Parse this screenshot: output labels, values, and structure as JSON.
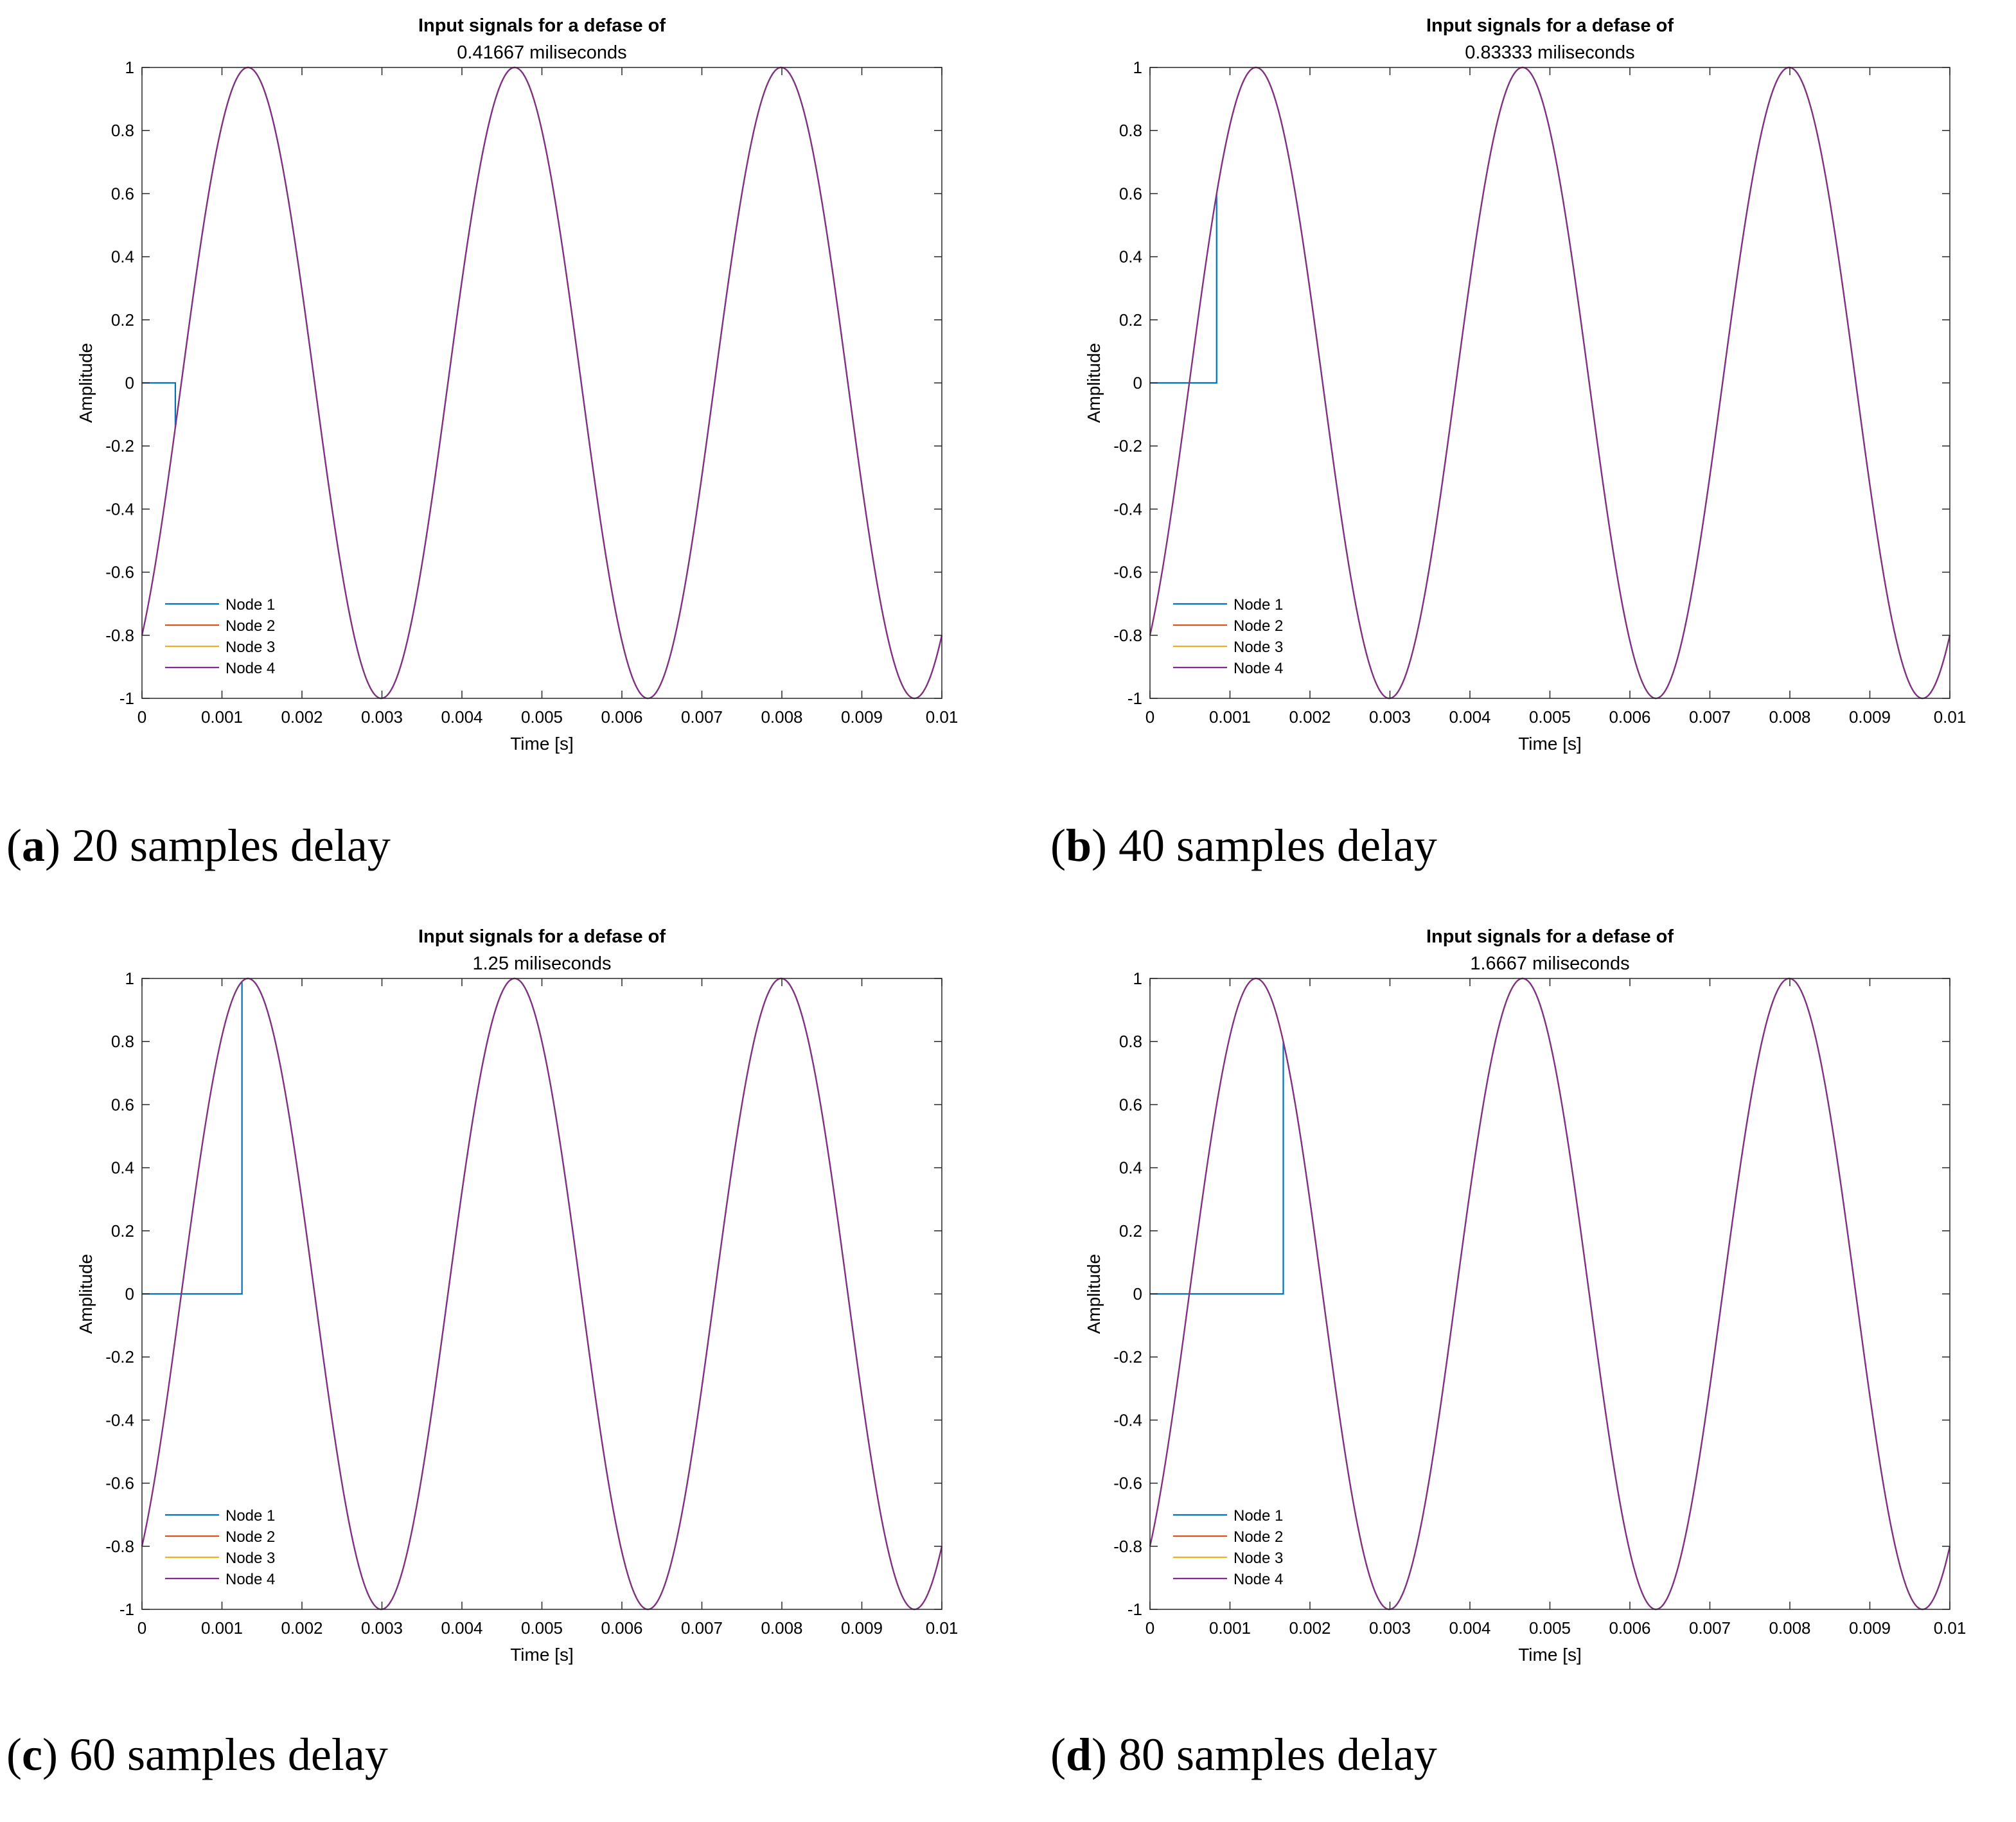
{
  "colors": {
    "node1": "#0072BD",
    "node2": "#D95319",
    "node3": "#EDB120",
    "node4": "#7E2F8E"
  },
  "panels": [
    {
      "caption_letter": "a",
      "caption_text": "20 samples delay",
      "chart_data": {
        "type": "line",
        "title": "Input signals for a defase of",
        "subtitle": "0.41667 miliseconds",
        "xlabel": "Time [s]",
        "ylabel": "Amplitude",
        "xlim": [
          0,
          0.01
        ],
        "ylim": [
          -1,
          1
        ],
        "xticks": [
          "0",
          "0.001",
          "0.002",
          "0.003",
          "0.004",
          "0.005",
          "0.006",
          "0.007",
          "0.008",
          "0.009",
          "0.01"
        ],
        "yticks": [
          "-1",
          "-0.8",
          "-0.6",
          "-0.4",
          "-0.2",
          "0",
          "0.2",
          "0.4",
          "0.6",
          "0.8",
          "1"
        ],
        "legend_location": "bottom-left",
        "frequency_hz": 300,
        "phase_rad": -0.9273,
        "delay_s": 0.00041667,
        "series": [
          {
            "name": "Node 1",
            "color_key": "node1",
            "delay_s": 0.00041667
          },
          {
            "name": "Node 2",
            "color_key": "node2",
            "delay_s": 0
          },
          {
            "name": "Node 3",
            "color_key": "node3",
            "delay_s": 0
          },
          {
            "name": "Node 4",
            "color_key": "node4",
            "delay_s": 0
          }
        ]
      }
    },
    {
      "caption_letter": "b",
      "caption_text": "40 samples delay",
      "chart_data": {
        "type": "line",
        "title": "Input signals for a defase of",
        "subtitle": "0.83333 miliseconds",
        "xlabel": "Time [s]",
        "ylabel": "Amplitude",
        "xlim": [
          0,
          0.01
        ],
        "ylim": [
          -1,
          1
        ],
        "xticks": [
          "0",
          "0.001",
          "0.002",
          "0.003",
          "0.004",
          "0.005",
          "0.006",
          "0.007",
          "0.008",
          "0.009",
          "0.01"
        ],
        "yticks": [
          "-1",
          "-0.8",
          "-0.6",
          "-0.4",
          "-0.2",
          "0",
          "0.2",
          "0.4",
          "0.6",
          "0.8",
          "1"
        ],
        "legend_location": "bottom-left",
        "frequency_hz": 300,
        "phase_rad": -0.9273,
        "delay_s": 0.00083333,
        "series": [
          {
            "name": "Node 1",
            "color_key": "node1",
            "delay_s": 0.00083333
          },
          {
            "name": "Node 2",
            "color_key": "node2",
            "delay_s": 0
          },
          {
            "name": "Node 3",
            "color_key": "node3",
            "delay_s": 0
          },
          {
            "name": "Node 4",
            "color_key": "node4",
            "delay_s": 0
          }
        ]
      }
    },
    {
      "caption_letter": "c",
      "caption_text": "60 samples delay",
      "chart_data": {
        "type": "line",
        "title": "Input signals for a defase of",
        "subtitle": "1.25 miliseconds",
        "xlabel": "Time [s]",
        "ylabel": "Amplitude",
        "xlim": [
          0,
          0.01
        ],
        "ylim": [
          -1,
          1
        ],
        "xticks": [
          "0",
          "0.001",
          "0.002",
          "0.003",
          "0.004",
          "0.005",
          "0.006",
          "0.007",
          "0.008",
          "0.009",
          "0.01"
        ],
        "yticks": [
          "-1",
          "-0.8",
          "-0.6",
          "-0.4",
          "-0.2",
          "0",
          "0.2",
          "0.4",
          "0.6",
          "0.8",
          "1"
        ],
        "legend_location": "bottom-left",
        "frequency_hz": 300,
        "phase_rad": -0.9273,
        "delay_s": 0.00125,
        "series": [
          {
            "name": "Node 1",
            "color_key": "node1",
            "delay_s": 0.00125
          },
          {
            "name": "Node 2",
            "color_key": "node2",
            "delay_s": 0
          },
          {
            "name": "Node 3",
            "color_key": "node3",
            "delay_s": 0
          },
          {
            "name": "Node 4",
            "color_key": "node4",
            "delay_s": 0
          }
        ]
      }
    },
    {
      "caption_letter": "d",
      "caption_text": "80 samples delay",
      "chart_data": {
        "type": "line",
        "title": "Input signals for a defase of",
        "subtitle": "1.6667 miliseconds",
        "xlabel": "Time [s]",
        "ylabel": "Amplitude",
        "xlim": [
          0,
          0.01
        ],
        "ylim": [
          -1,
          1
        ],
        "xticks": [
          "0",
          "0.001",
          "0.002",
          "0.003",
          "0.004",
          "0.005",
          "0.006",
          "0.007",
          "0.008",
          "0.009",
          "0.01"
        ],
        "yticks": [
          "-1",
          "-0.8",
          "-0.6",
          "-0.4",
          "-0.2",
          "0",
          "0.2",
          "0.4",
          "0.6",
          "0.8",
          "1"
        ],
        "legend_location": "bottom-left",
        "frequency_hz": 300,
        "phase_rad": -0.9273,
        "delay_s": 0.0016667,
        "series": [
          {
            "name": "Node 1",
            "color_key": "node1",
            "delay_s": 0.0016667
          },
          {
            "name": "Node 2",
            "color_key": "node2",
            "delay_s": 0
          },
          {
            "name": "Node 3",
            "color_key": "node3",
            "delay_s": 0
          },
          {
            "name": "Node 4",
            "color_key": "node4",
            "delay_s": 0
          }
        ]
      }
    }
  ]
}
